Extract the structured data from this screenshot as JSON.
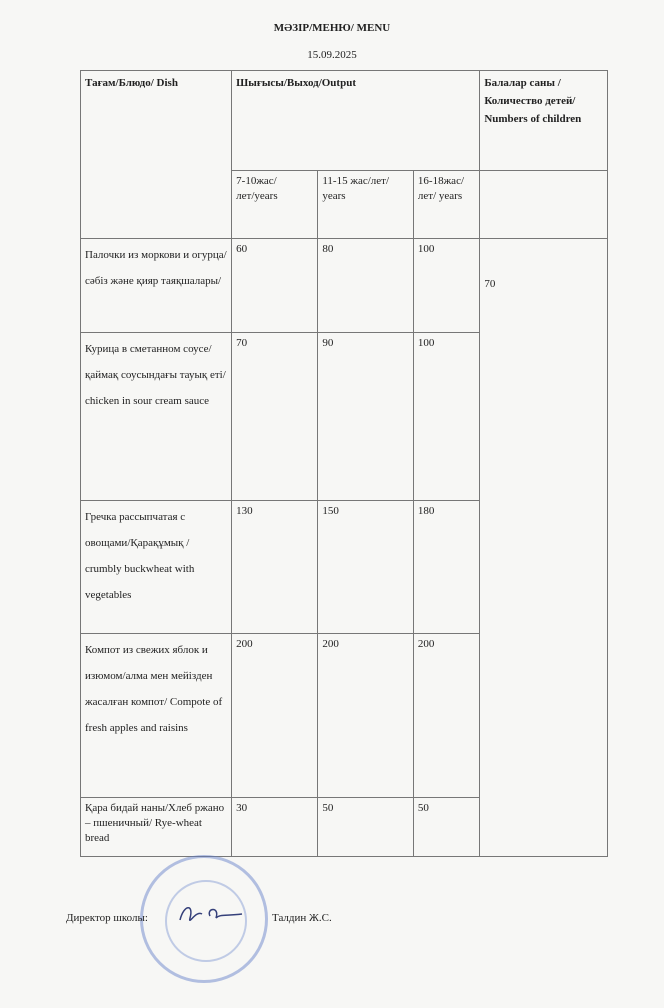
{
  "title": "МӘЗІР/МЕНЮ/ MENU",
  "date": "15.09.2025",
  "table": {
    "headers": {
      "dish": "Тағам/Блюдо/ Dish",
      "output": "Шығысы/Выход/Output",
      "children": "Балалар саны /Количество детей/ Numbers of children",
      "age_groups": [
        "7-10жас/лет/years",
        "11-15 жас/лет/ years",
        "16-18жас/лет/ years"
      ]
    },
    "children_count": "70",
    "rows": [
      {
        "dish": "Палочки из моркови и огурца/сәбіз және қияр таяқшалары/",
        "values": [
          "60",
          "80",
          "100"
        ]
      },
      {
        "dish": "Курица в сметанном соусе/ қаймақ соусындағы тауық еті/ chicken in sour cream sauce",
        "values": [
          "70",
          "90",
          "100"
        ]
      },
      {
        "dish": "Гречка рассыпчатая с овощами/Қарақұмық / crumbly buckwheat with vegetables",
        "values": [
          "130",
          "150",
          "180"
        ]
      },
      {
        "dish": "Компот из свежих яблок и изюмом/алма мен мейізден жасалған компот/ Compote of fresh apples and raisins",
        "values": [
          "200",
          "200",
          "200"
        ]
      },
      {
        "dish": "Қара бидай наны/Хлеб ржано – пшеничный/ Rye-wheat bread",
        "values": [
          "30",
          "50",
          "50"
        ]
      }
    ]
  },
  "footer": {
    "director_label": "Директор школы:",
    "director_name": "Талдин Ж.С."
  }
}
